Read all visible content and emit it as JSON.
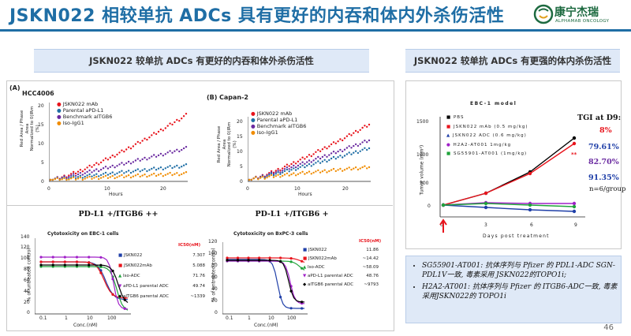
{
  "header": {
    "title": "JSKN022 相较单抗 ADCs 具有更好的内吞和体内外杀伤活性",
    "logo_cn": "康宁杰瑞",
    "logo_en": "ALPHAMAB ONCOLOGY"
  },
  "left_section": {
    "title": "JSKN022 较单抗 ADCs 有更好的内吞和体外杀伤活性",
    "panel_a": {
      "tag": "(A)",
      "cell_line": "HCC4006",
      "ylabel_lines": [
        "Red Area / Phase Area",
        "Normalized to 0(IRm (%)"
      ],
      "xlabel": "Hours",
      "yticks": [
        "0",
        "5",
        "10",
        "15",
        "20"
      ],
      "xticks": [
        "0",
        "10",
        "20"
      ],
      "legend": [
        "JSKN022 mAb",
        "Parental aPD-L1",
        "Benchmark aITGB6",
        "Iso-IgG1"
      ]
    },
    "panel_b": {
      "tag": "(B)",
      "cell_line": "Capan-2",
      "ylabel_lines": [
        "Red Area / Phase Area",
        "Normalized to 0(IRm (%)"
      ],
      "xlabel": "Hours",
      "yticks": [
        "0",
        "5",
        "10",
        "15",
        "20"
      ],
      "xticks": [
        "0",
        "10",
        "20"
      ],
      "legend": [
        "JSKN022 mAb",
        "Parental aPD-L1",
        "Benchmark aITGB6",
        "Iso-IgG1"
      ]
    },
    "panel_c": {
      "subtitle": "PD-L1 +/ITGB6 ++",
      "plot_title": "Cytotoxicity on EBC-1 cells",
      "ylabel": "% of untreated control",
      "xlabel": "Conc.(nM)",
      "yticks": [
        "0",
        "20",
        "40",
        "60",
        "80",
        "100",
        "120",
        "140"
      ],
      "xticks": [
        "0.1",
        "1",
        "10",
        "100"
      ],
      "ic50_header": "IC50(nM)",
      "legend": [
        {
          "name": "JSKN022",
          "ic50": "7.307"
        },
        {
          "name": "JSKN022mAb",
          "ic50": "5.088"
        },
        {
          "name": "Iso-ADC",
          "ic50": "71.76"
        },
        {
          "name": "aPD-L1 parental ADC",
          "ic50": "49.74"
        },
        {
          "name": "aITGB6 parental ADC",
          "ic50": "~1339"
        }
      ]
    },
    "panel_d": {
      "subtitle": "PD-L1 +/ITGB6 +",
      "plot_title": "Cytotoxicity on BxPC-3 cells",
      "ylabel": "% of untreated control",
      "xlabel": "Conc.(nM)",
      "yticks": [
        "0",
        "20",
        "40",
        "60",
        "80",
        "100",
        "120"
      ],
      "xticks": [
        "0.1",
        "1",
        "10",
        "100"
      ],
      "ic50_header": "IC50(nM)",
      "legend": [
        {
          "name": "JSKN022",
          "ic50": "11.86"
        },
        {
          "name": "JSKN022mAb",
          "ic50": "~14.42"
        },
        {
          "name": "Iso-ADC",
          "ic50": "~58.09"
        },
        {
          "name": "aPD-L1 parental ADC",
          "ic50": "48.76"
        },
        {
          "name": "aITGB6 parental ADC",
          "ic50": "~9793"
        }
      ]
    }
  },
  "right_section": {
    "title": "JSKN022 较单抗 ADCs 有更强的体内杀伤活性",
    "plot_title": "EBC-1 model",
    "ylabel": "Tumor volume (mm³)",
    "xlabel": "Days post treatment",
    "yticks": [
      "0",
      "500",
      "1000",
      "1500"
    ],
    "xticks": [
      "0",
      "3",
      "6",
      "9"
    ],
    "legend": [
      "PBS",
      "JSKN022 mAb (0.5 mg/kg)",
      "JSKN022 ADC (0.6 mg/kg)",
      "H2A2-AT001 1mg/kg",
      "SG55901-AT001 (1mg/kg)"
    ],
    "tgi_header": "TGI at D9:",
    "tgi": [
      {
        "value": "8%",
        "color": "#e8141c"
      },
      {
        "value": "79.61%",
        "color": "#1f3fa8"
      },
      {
        "value": "82.70%",
        "color": "#6a2aa0"
      },
      {
        "value": "91.35%",
        "color": "#1f3fa8"
      }
    ],
    "n_note": "n=6/group",
    "sig_marks": [
      "**"
    ],
    "notes": [
      "SG55901-AT001: 抗体序列与 Pfizer 的 PDL1-ADC SGN-PDL1V一致, 毒素采用 JSKN022的TOPO1i;",
      "H2A2-AT001: 抗体序列与 Pfizer 的 ITGB6-ADC一致, 毒素采用JSKN022的 TOPO1i"
    ]
  },
  "colors": {
    "title_blue": "#1f6ea5",
    "red": "#e8141c",
    "blue": "#1f3fa8",
    "purple": "#6a2aa0",
    "green": "#1fa33a",
    "orange": "#f08c00",
    "black": "#000000"
  },
  "page_number": "46"
}
